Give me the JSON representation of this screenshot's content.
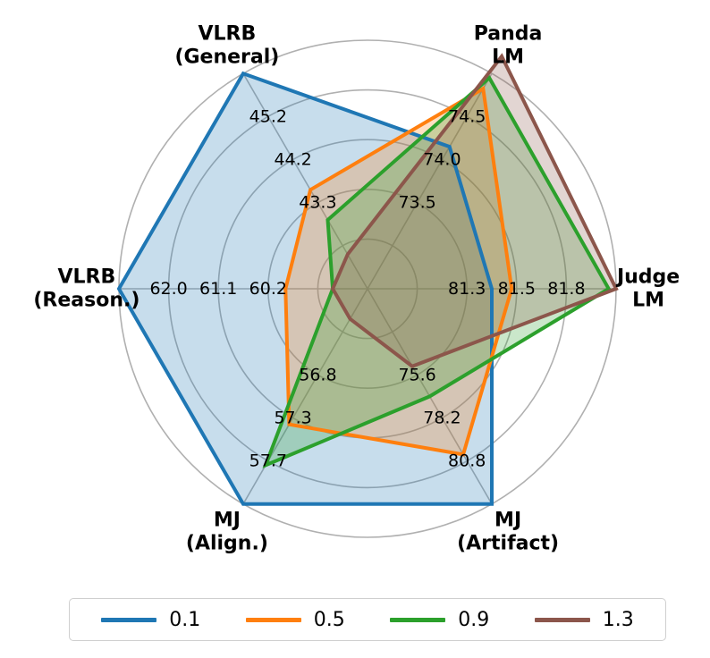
{
  "chart_data": {
    "type": "radar",
    "axes": [
      {
        "label_lines": [
          "VLRB",
          "(General)"
        ],
        "ticks": [
          "43.3",
          "44.2",
          "45.2"
        ]
      },
      {
        "label_lines": [
          "Panda",
          "LM"
        ],
        "ticks": [
          "73.5",
          "74.0",
          "74.5"
        ]
      },
      {
        "label_lines": [
          "Judge",
          "LM"
        ],
        "ticks": [
          "81.3",
          "81.5",
          "81.8"
        ]
      },
      {
        "label_lines": [
          "MJ",
          "(Artifact)"
        ],
        "ticks": [
          "75.6",
          "78.2",
          "80.8"
        ]
      },
      {
        "label_lines": [
          "MJ",
          "(Align.)"
        ],
        "ticks": [
          "56.8",
          "57.3",
          "57.7"
        ]
      },
      {
        "label_lines": [
          "VLRB",
          "(Reason.)"
        ],
        "ticks": [
          "60.2",
          "61.1",
          "62.0"
        ]
      }
    ],
    "radial_scale": {
      "min": 0,
      "max": 1,
      "gridlines": [
        0.2,
        0.4,
        0.6,
        0.8,
        1.0
      ]
    },
    "series": [
      {
        "name": "0.1",
        "color": "#1f77b4",
        "values": [
          1.0,
          0.66,
          0.5,
          1.0,
          1.0,
          1.0
        ]
      },
      {
        "name": "0.5",
        "color": "#ff7f0e",
        "values": [
          0.46,
          0.93,
          0.58,
          0.77,
          0.63,
          0.33
        ]
      },
      {
        "name": "0.9",
        "color": "#2ca02c",
        "values": [
          0.32,
          0.98,
          0.97,
          0.5,
          0.82,
          0.14
        ]
      },
      {
        "name": "1.3",
        "color": "#8c564b",
        "values": [
          0.16,
          1.08,
          1.0,
          0.36,
          0.14,
          0.14
        ]
      }
    ]
  }
}
